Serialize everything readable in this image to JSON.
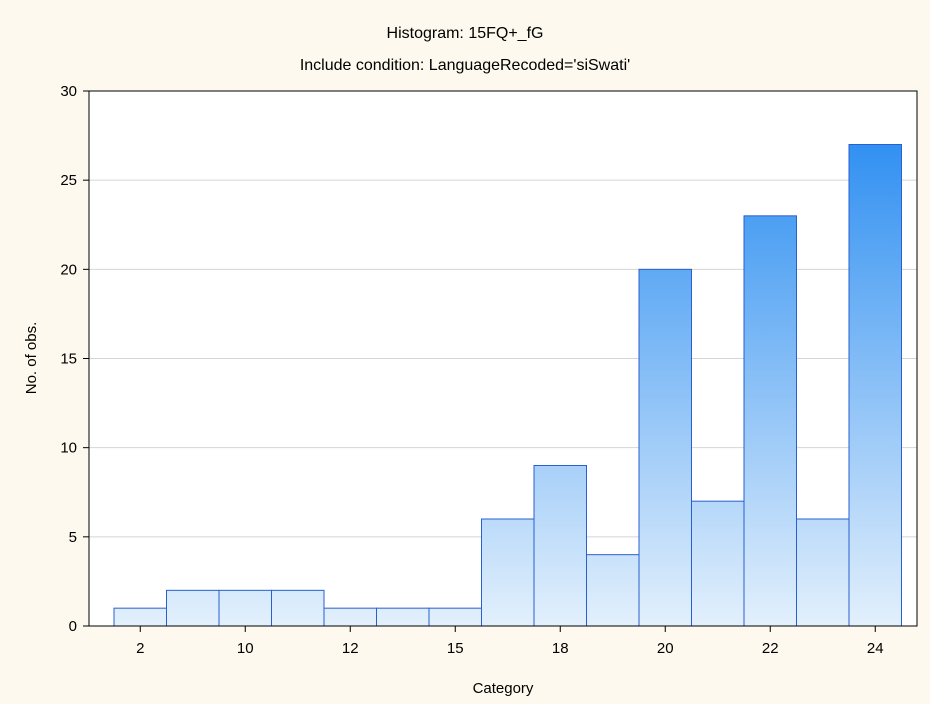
{
  "chart_data": {
    "type": "bar",
    "title": "Histogram: 15FQ+_fG",
    "subtitle": "Include condition: LanguageRecoded='siSwati'",
    "xlabel": "Category",
    "ylabel": "No. of obs.",
    "ylim": [
      0,
      30
    ],
    "yticks": [
      0,
      5,
      10,
      15,
      20,
      25,
      30
    ],
    "grid": true,
    "bins": [
      1,
      2,
      3,
      4,
      5,
      6,
      7,
      8,
      9,
      10,
      11,
      12,
      13,
      14,
      15,
      16
    ],
    "values": [
      1,
      2,
      2,
      2,
      1,
      1,
      1,
      6,
      9,
      4,
      20,
      7,
      23,
      6,
      27,
      0
    ],
    "tick_labels": [
      {
        "bin": 1,
        "label": "2"
      },
      {
        "bin": 3,
        "label": "10"
      },
      {
        "bin": 5,
        "label": "12"
      },
      {
        "bin": 7,
        "label": "15"
      },
      {
        "bin": 9,
        "label": "18"
      },
      {
        "bin": 11,
        "label": "20"
      },
      {
        "bin": 13,
        "label": "22"
      },
      {
        "bin": 15,
        "label": "24"
      }
    ],
    "bar_gradient_colors": {
      "top": "#1e86f0",
      "bottom": "#e3f0fc"
    },
    "bar_edge_color": "#2a5fcf",
    "background_color": "#fdf9ee"
  }
}
